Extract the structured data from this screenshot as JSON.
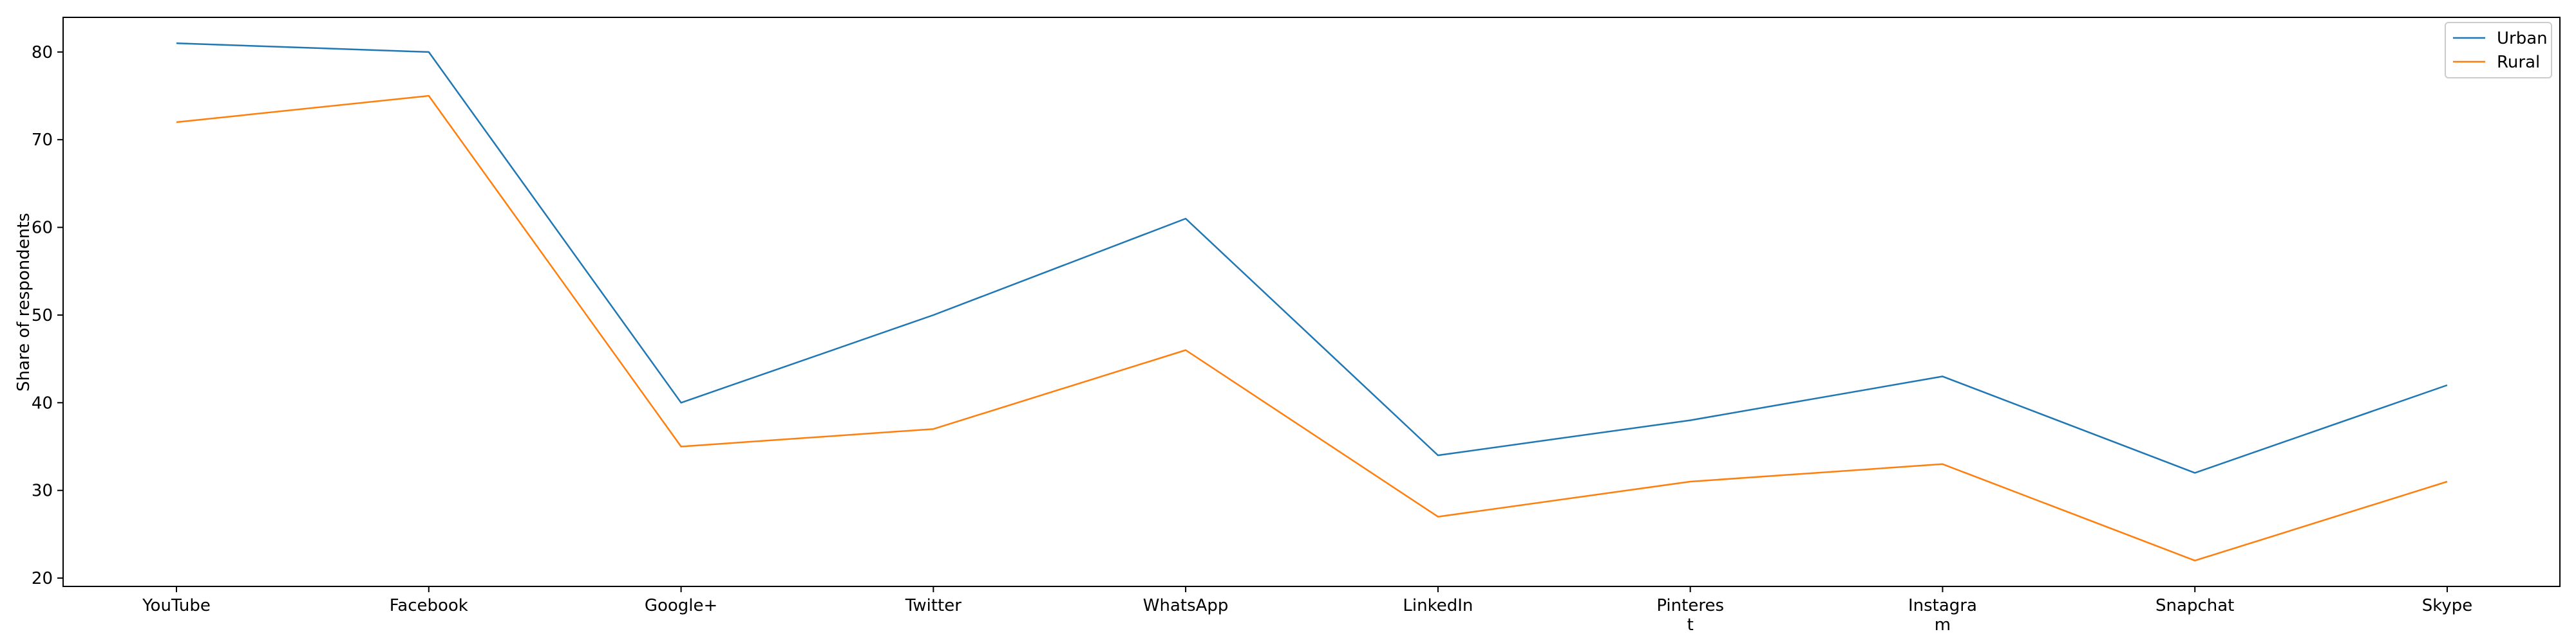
{
  "chart_data": {
    "type": "line",
    "categories": [
      "YouTube",
      "Facebook",
      "Google+",
      "Twitter",
      "WhatsApp",
      "LinkedIn",
      "Pinteres\nt",
      "Instagra\nm",
      "Snapchat",
      "Skype"
    ],
    "series": [
      {
        "name": "Urban",
        "color": "#1f77b4",
        "values": [
          81,
          80,
          40,
          50,
          61,
          34,
          38,
          43,
          32,
          42
        ]
      },
      {
        "name": "Rural",
        "color": "#ff7f0e",
        "values": [
          72,
          75,
          35,
          37,
          46,
          27,
          31,
          33,
          22,
          31
        ]
      }
    ],
    "xlabel": "",
    "ylabel": "Share of respondents",
    "ylim": [
      19.05,
      83.95
    ],
    "yticks": [
      20,
      30,
      40,
      50,
      60,
      70,
      80
    ],
    "grid": false,
    "legend_position": "top-right"
  }
}
